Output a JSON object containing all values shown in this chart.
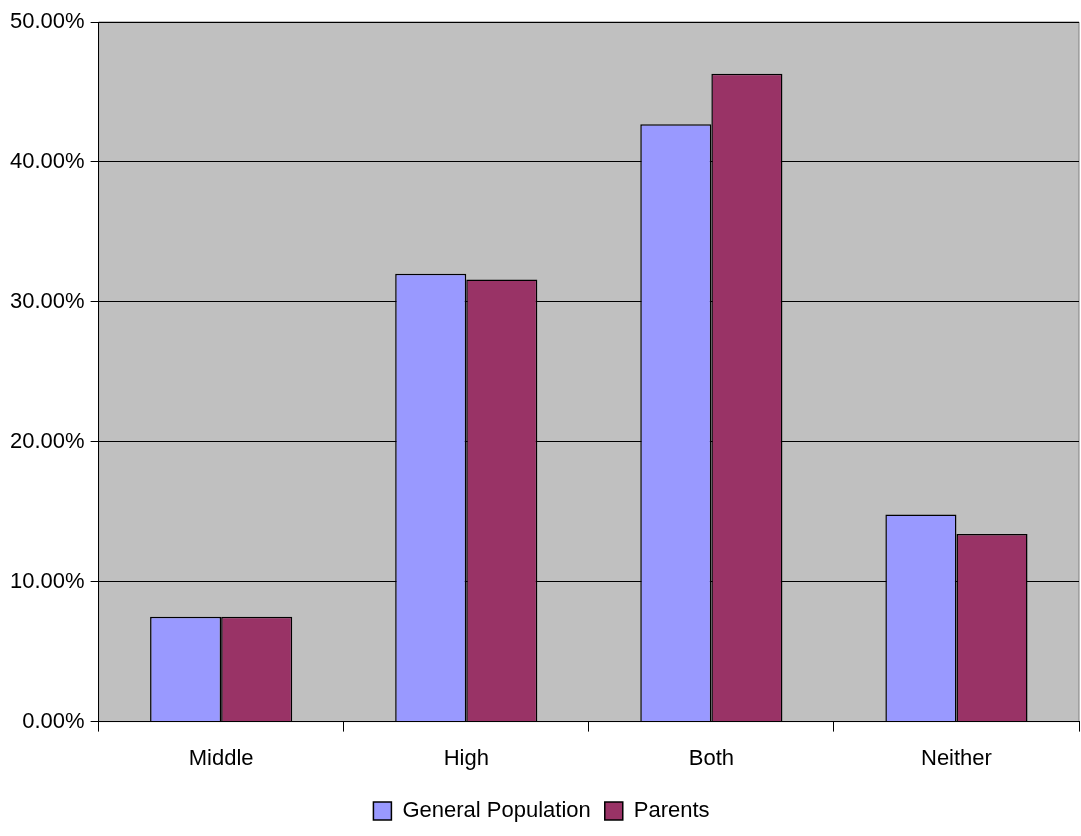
{
  "chart_data": {
    "type": "bar",
    "categories": [
      "Middle",
      "High",
      "Both",
      "Neither"
    ],
    "series": [
      {
        "name": "General Population",
        "color": "#9999ff",
        "values": [
          7.5,
          32.0,
          42.7,
          14.8
        ]
      },
      {
        "name": "Parents",
        "color": "#993366",
        "values": [
          7.5,
          31.6,
          46.3,
          13.4
        ]
      }
    ],
    "ylim": [
      0,
      50
    ],
    "yticks": [
      {
        "value": 0,
        "label": "0.00%"
      },
      {
        "value": 10,
        "label": "10.00%"
      },
      {
        "value": 20,
        "label": "20.00%"
      },
      {
        "value": 30,
        "label": "30.00%"
      },
      {
        "value": 40,
        "label": "40.00%"
      },
      {
        "value": 50,
        "label": "50.00%"
      }
    ],
    "grid": "y",
    "legend": "bottom"
  }
}
